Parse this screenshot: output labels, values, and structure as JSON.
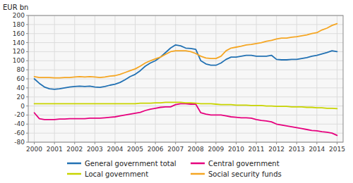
{
  "chart_data": {
    "type": "line",
    "ylabel": "EUR bn",
    "x": [
      2000.0,
      2000.25,
      2000.5,
      2000.75,
      2001.0,
      2001.25,
      2001.5,
      2001.75,
      2002.0,
      2002.25,
      2002.5,
      2002.75,
      2003.0,
      2003.25,
      2003.5,
      2003.75,
      2004.0,
      2004.25,
      2004.5,
      2004.75,
      2005.0,
      2005.25,
      2005.5,
      2005.75,
      2006.0,
      2006.25,
      2006.5,
      2006.75,
      2007.0,
      2007.25,
      2007.5,
      2007.75,
      2008.0,
      2008.25,
      2008.5,
      2008.75,
      2009.0,
      2009.25,
      2009.5,
      2009.75,
      2010.0,
      2010.25,
      2010.5,
      2010.75,
      2011.0,
      2011.25,
      2011.5,
      2011.75,
      2012.0,
      2012.25,
      2012.5,
      2012.75,
      2013.0,
      2013.25,
      2013.5,
      2013.75,
      2014.0,
      2014.25,
      2014.5,
      2014.75,
      2015.0
    ],
    "series": [
      {
        "name": "General government total",
        "color": "#2271b3",
        "values": [
          60,
          50,
          42,
          38,
          37,
          38,
          40,
          42,
          43,
          44,
          43,
          44,
          42,
          41,
          43,
          46,
          48,
          52,
          58,
          65,
          70,
          78,
          88,
          95,
          100,
          108,
          118,
          128,
          135,
          133,
          128,
          127,
          125,
          100,
          93,
          90,
          90,
          95,
          103,
          108,
          108,
          110,
          112,
          112,
          110,
          110,
          110,
          112,
          103,
          102,
          102,
          103,
          103,
          105,
          107,
          110,
          112,
          115,
          118,
          122,
          120
        ]
      },
      {
        "name": "Central government",
        "color": "#e6007e",
        "values": [
          -15,
          -28,
          -30,
          -30,
          -30,
          -29,
          -29,
          -28,
          -28,
          -28,
          -28,
          -27,
          -27,
          -27,
          -26,
          -25,
          -24,
          -22,
          -20,
          -18,
          -16,
          -14,
          -10,
          -7,
          -5,
          -3,
          -2,
          -2,
          3,
          5,
          5,
          4,
          4,
          -15,
          -18,
          -20,
          -20,
          -20,
          -22,
          -24,
          -25,
          -26,
          -26,
          -27,
          -30,
          -32,
          -33,
          -35,
          -40,
          -42,
          -44,
          -46,
          -48,
          -50,
          -52,
          -54,
          -55,
          -57,
          -58,
          -60,
          -65
        ]
      },
      {
        "name": "Local government",
        "color": "#c8d400",
        "values": [
          5,
          5,
          5,
          5,
          5,
          5,
          5,
          5,
          5,
          5,
          5,
          5,
          5,
          5,
          5,
          5,
          5,
          5,
          5,
          5,
          5,
          6,
          6,
          6,
          7,
          7,
          8,
          8,
          8,
          8,
          7,
          7,
          6,
          5,
          5,
          5,
          4,
          3,
          3,
          3,
          2,
          2,
          2,
          1,
          1,
          1,
          0,
          0,
          -1,
          -1,
          -1,
          -2,
          -2,
          -2,
          -3,
          -3,
          -4,
          -4,
          -5,
          -5,
          -6
        ]
      },
      {
        "name": "Social security funds",
        "color": "#f5a623",
        "values": [
          65,
          63,
          63,
          63,
          62,
          62,
          63,
          63,
          64,
          65,
          64,
          65,
          64,
          63,
          64,
          66,
          67,
          70,
          74,
          78,
          82,
          88,
          95,
          100,
          104,
          108,
          114,
          120,
          122,
          122,
          122,
          120,
          116,
          110,
          106,
          105,
          105,
          110,
          122,
          128,
          130,
          132,
          135,
          136,
          138,
          140,
          143,
          145,
          148,
          150,
          150,
          152,
          153,
          155,
          157,
          160,
          162,
          168,
          172,
          178,
          182
        ]
      }
    ],
    "xlim": [
      1999.7,
      2015.3
    ],
    "xticks": [
      2000,
      2001,
      2002,
      2003,
      2004,
      2005,
      2006,
      2007,
      2008,
      2009,
      2010,
      2011,
      2012,
      2013,
      2014,
      2015
    ],
    "ylim": [
      -80,
      200
    ],
    "yticks": [
      -80,
      -60,
      -40,
      -20,
      0,
      20,
      40,
      60,
      80,
      100,
      120,
      140,
      160,
      180,
      200
    ],
    "grid": true,
    "legend": "bottom"
  }
}
